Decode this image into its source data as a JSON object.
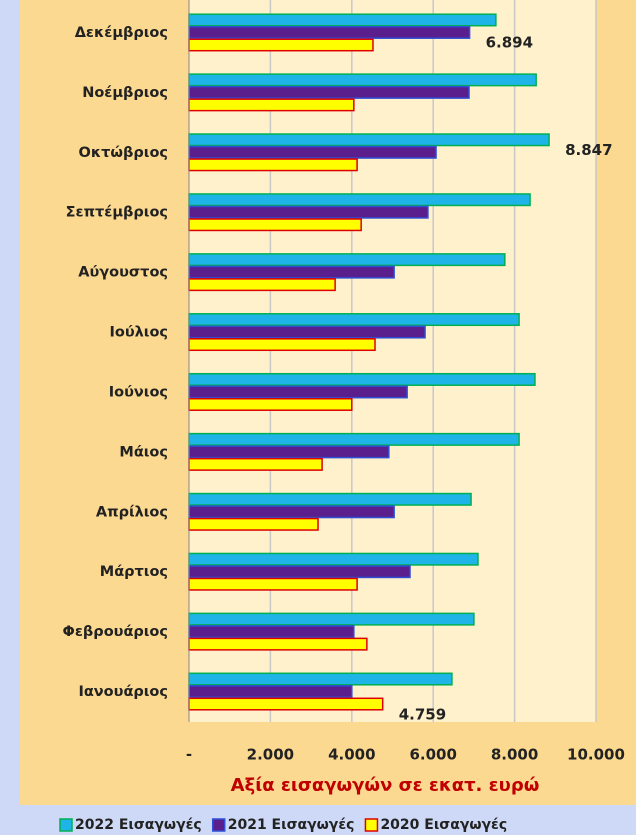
{
  "chart_data": {
    "type": "hbar",
    "x_axis_label": "Αξία εισαγωγών σε εκατ. ευρώ",
    "categories": [
      "Ιανουάριος",
      "Φεβρουάριος",
      "Μάρτιος",
      "Απρίλιος",
      "Μάιος",
      "Ιούνιος",
      "Ιούλιος",
      "Αύγουστος",
      "Σεπτέμβριος",
      "Οκτώβριος",
      "Νοέμβριος",
      "Δεκέμβριος"
    ],
    "series": [
      {
        "name": "2022 Εισαγωγές",
        "color": "#1fb4e8",
        "border": "#00b050",
        "values": [
          6460,
          7000,
          7100,
          6930,
          8110,
          8500,
          8110,
          7760,
          8380,
          8847,
          8530,
          7540
        ],
        "value_labels": [
          null,
          null,
          null,
          null,
          null,
          null,
          null,
          null,
          null,
          "8.847",
          null,
          null
        ]
      },
      {
        "name": "2021 Εισαγωγές",
        "color": "#5a1f8c",
        "border": "#2e4fd6",
        "values": [
          4000,
          4050,
          5430,
          5040,
          4910,
          5360,
          5800,
          5040,
          5870,
          6070,
          6880,
          6894
        ],
        "value_labels": [
          null,
          null,
          null,
          null,
          null,
          null,
          null,
          null,
          null,
          null,
          null,
          "6.894"
        ]
      },
      {
        "name": "2020 Εισαγωγές",
        "color": "#ffff00",
        "border": "#e00000",
        "values": [
          4759,
          4370,
          4130,
          3170,
          3270,
          4000,
          4570,
          3590,
          4230,
          4130,
          4050,
          4520
        ],
        "value_labels": [
          "4.759",
          null,
          null,
          null,
          null,
          null,
          null,
          null,
          null,
          null,
          null,
          null
        ]
      }
    ],
    "xlim": [
      0,
      10000
    ],
    "xticks": [
      {
        "value": 0,
        "label": "-"
      },
      {
        "value": 2000,
        "label": "2.000"
      },
      {
        "value": 4000,
        "label": "4.000"
      },
      {
        "value": 6000,
        "label": "6.000"
      },
      {
        "value": 8000,
        "label": "8.000"
      },
      {
        "value": 10000,
        "label": "10.000"
      }
    ],
    "grid": true
  }
}
